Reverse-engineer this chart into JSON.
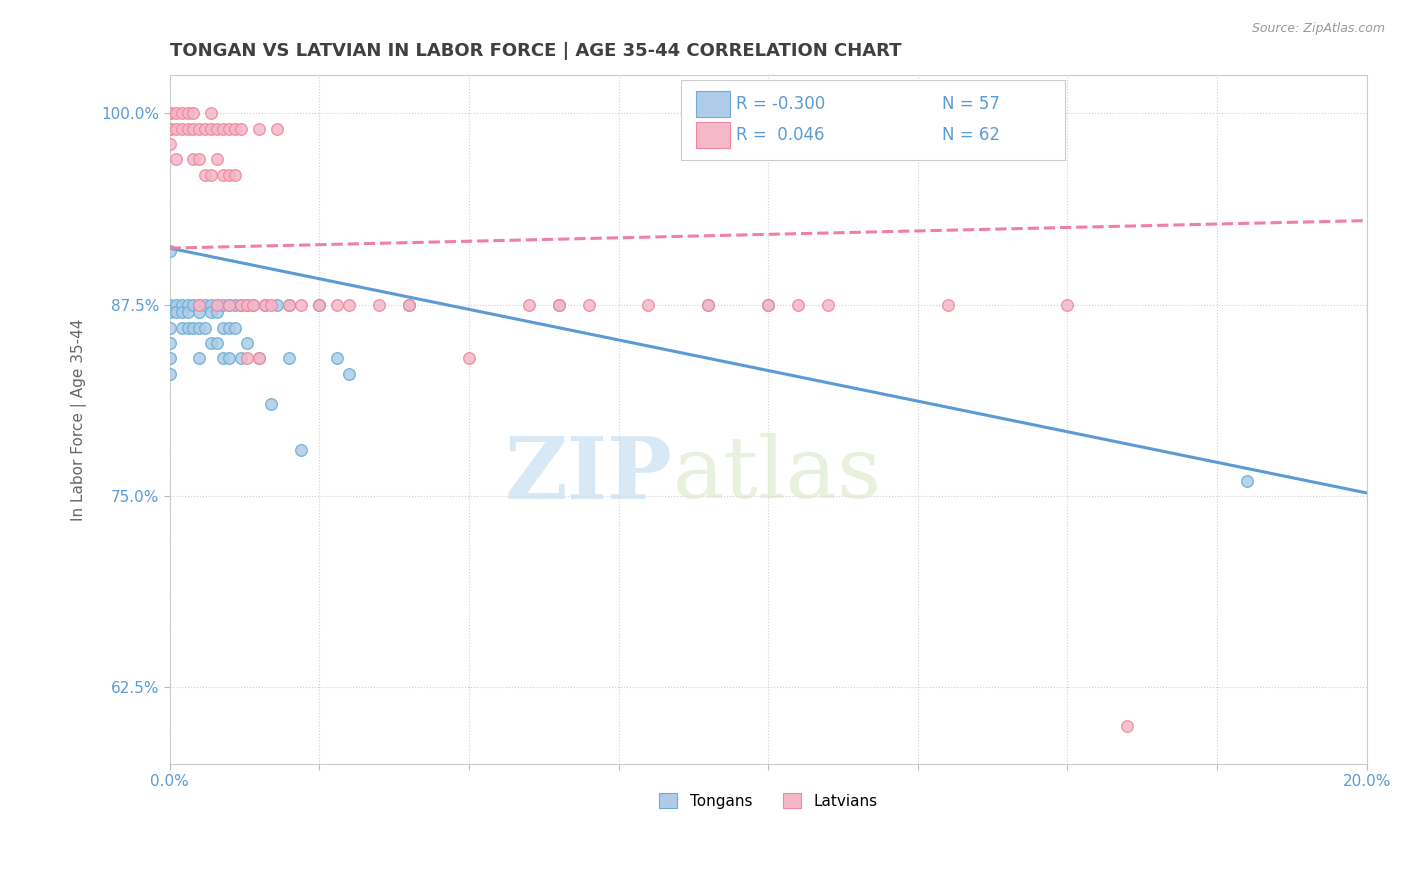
{
  "title": "TONGAN VS LATVIAN IN LABOR FORCE | AGE 35-44 CORRELATION CHART",
  "source_text": "Source: ZipAtlas.com",
  "ylabel": "In Labor Force | Age 35-44",
  "xlim": [
    0.0,
    0.2
  ],
  "ylim": [
    0.575,
    1.025
  ],
  "yticks": [
    0.625,
    0.75,
    0.875,
    1.0
  ],
  "ytick_labels": [
    "62.5%",
    "75.0%",
    "87.5%",
    "100.0%"
  ],
  "xticks": [
    0.0,
    0.025,
    0.05,
    0.075,
    0.1,
    0.125,
    0.15,
    0.175,
    0.2
  ],
  "xtick_labels": [
    "0.0%",
    "",
    "",
    "",
    "",
    "",
    "",
    "",
    "20.0%"
  ],
  "legend_labels": [
    "Tongans",
    "Latvians"
  ],
  "legend_r": [
    "R = -0.300",
    "R =  0.046"
  ],
  "legend_n": [
    "N = 57",
    "N = 62"
  ],
  "blue_color": "#aecce8",
  "pink_color": "#f4b8c8",
  "blue_edge_color": "#6aaed6",
  "pink_edge_color": "#f086a0",
  "blue_line_color": "#5b9bd5",
  "pink_line_color": "#f080a0",
  "watermark_zip": "ZIP",
  "watermark_atlas": "atlas",
  "background_color": "#ffffff",
  "grid_color": "#d0d0d0",
  "title_color": "#404040",
  "axis_label_color": "#5b9bd5",
  "tongan_x": [
    0.0,
    0.0,
    0.0,
    0.0,
    0.0,
    0.0,
    0.0,
    0.001,
    0.001,
    0.002,
    0.002,
    0.002,
    0.003,
    0.003,
    0.003,
    0.004,
    0.004,
    0.005,
    0.005,
    0.005,
    0.005,
    0.006,
    0.006,
    0.007,
    0.007,
    0.007,
    0.008,
    0.008,
    0.008,
    0.009,
    0.009,
    0.009,
    0.01,
    0.01,
    0.01,
    0.011,
    0.011,
    0.012,
    0.012,
    0.013,
    0.013,
    0.014,
    0.015,
    0.016,
    0.017,
    0.018,
    0.02,
    0.02,
    0.022,
    0.025,
    0.028,
    0.03,
    0.04,
    0.065,
    0.09,
    0.1,
    0.18
  ],
  "tongan_y": [
    0.91,
    0.875,
    0.87,
    0.86,
    0.85,
    0.84,
    0.83,
    0.875,
    0.87,
    0.875,
    0.87,
    0.86,
    0.875,
    0.87,
    0.86,
    0.875,
    0.86,
    0.875,
    0.87,
    0.86,
    0.84,
    0.875,
    0.86,
    0.875,
    0.87,
    0.85,
    0.875,
    0.87,
    0.85,
    0.875,
    0.86,
    0.84,
    0.875,
    0.86,
    0.84,
    0.875,
    0.86,
    0.875,
    0.84,
    0.875,
    0.85,
    0.875,
    0.84,
    0.875,
    0.81,
    0.875,
    0.875,
    0.84,
    0.78,
    0.875,
    0.84,
    0.83,
    0.875,
    0.875,
    0.875,
    0.875,
    0.76
  ],
  "latvian_x": [
    0.0,
    0.0,
    0.0,
    0.0,
    0.0,
    0.001,
    0.001,
    0.001,
    0.002,
    0.002,
    0.003,
    0.003,
    0.004,
    0.004,
    0.004,
    0.005,
    0.005,
    0.005,
    0.006,
    0.006,
    0.007,
    0.007,
    0.007,
    0.008,
    0.008,
    0.008,
    0.009,
    0.009,
    0.01,
    0.01,
    0.01,
    0.011,
    0.011,
    0.012,
    0.012,
    0.013,
    0.013,
    0.014,
    0.015,
    0.015,
    0.016,
    0.017,
    0.018,
    0.02,
    0.022,
    0.025,
    0.028,
    0.03,
    0.035,
    0.04,
    0.05,
    0.06,
    0.065,
    0.07,
    0.08,
    0.09,
    0.1,
    0.105,
    0.11,
    0.13,
    0.15,
    0.16
  ],
  "latvian_y": [
    1.0,
    1.0,
    0.99,
    0.99,
    0.98,
    1.0,
    0.99,
    0.97,
    1.0,
    0.99,
    1.0,
    0.99,
    1.0,
    0.99,
    0.97,
    0.99,
    0.97,
    0.875,
    0.99,
    0.96,
    1.0,
    0.99,
    0.96,
    0.99,
    0.97,
    0.875,
    0.99,
    0.96,
    0.99,
    0.96,
    0.875,
    0.99,
    0.96,
    0.99,
    0.875,
    0.875,
    0.84,
    0.875,
    0.99,
    0.84,
    0.875,
    0.875,
    0.99,
    0.875,
    0.875,
    0.875,
    0.875,
    0.875,
    0.875,
    0.875,
    0.84,
    0.875,
    0.875,
    0.875,
    0.875,
    0.875,
    0.875,
    0.875,
    0.875,
    0.875,
    0.875,
    0.6
  ]
}
